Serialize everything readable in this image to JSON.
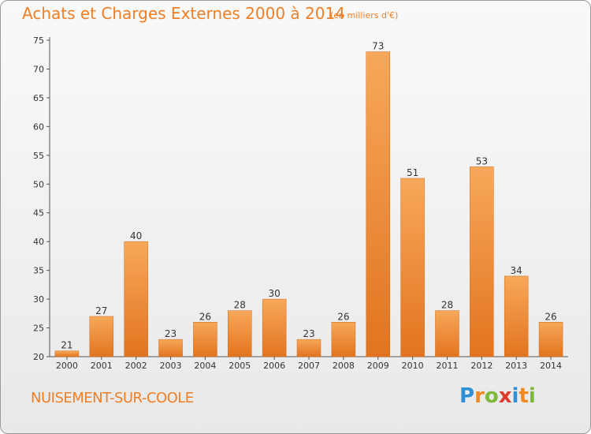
{
  "header": {
    "title": "Achats et Charges Externes 2000 à 2014",
    "subtitle": "(en milliers d'€)"
  },
  "footer": {
    "place": "NUISEMENT-SUR-COOLE",
    "logo": "Proxiti"
  },
  "colors": {
    "accent": "#ef7e25",
    "bar_light": "#f7a85a",
    "bar_dark": "#e2741f",
    "logo_letters": [
      "#2d8fd5",
      "#f08a1f",
      "#7cb83a",
      "#e23a2a",
      "#2d8fd5",
      "#f08a1f",
      "#7cb83a"
    ]
  },
  "chart_data": {
    "type": "bar",
    "categories": [
      "2000",
      "2001",
      "2002",
      "2003",
      "2004",
      "2005",
      "2006",
      "2007",
      "2008",
      "2009",
      "2010",
      "2011",
      "2012",
      "2013",
      "2014"
    ],
    "values": [
      21,
      27,
      40,
      23,
      26,
      28,
      30,
      23,
      26,
      73,
      51,
      28,
      53,
      34,
      26
    ],
    "ylim": [
      20,
      75
    ],
    "yticks": [
      20,
      25,
      30,
      35,
      40,
      45,
      50,
      55,
      60,
      65,
      70,
      75
    ],
    "grid": false,
    "xlabel": "",
    "ylabel": ""
  }
}
